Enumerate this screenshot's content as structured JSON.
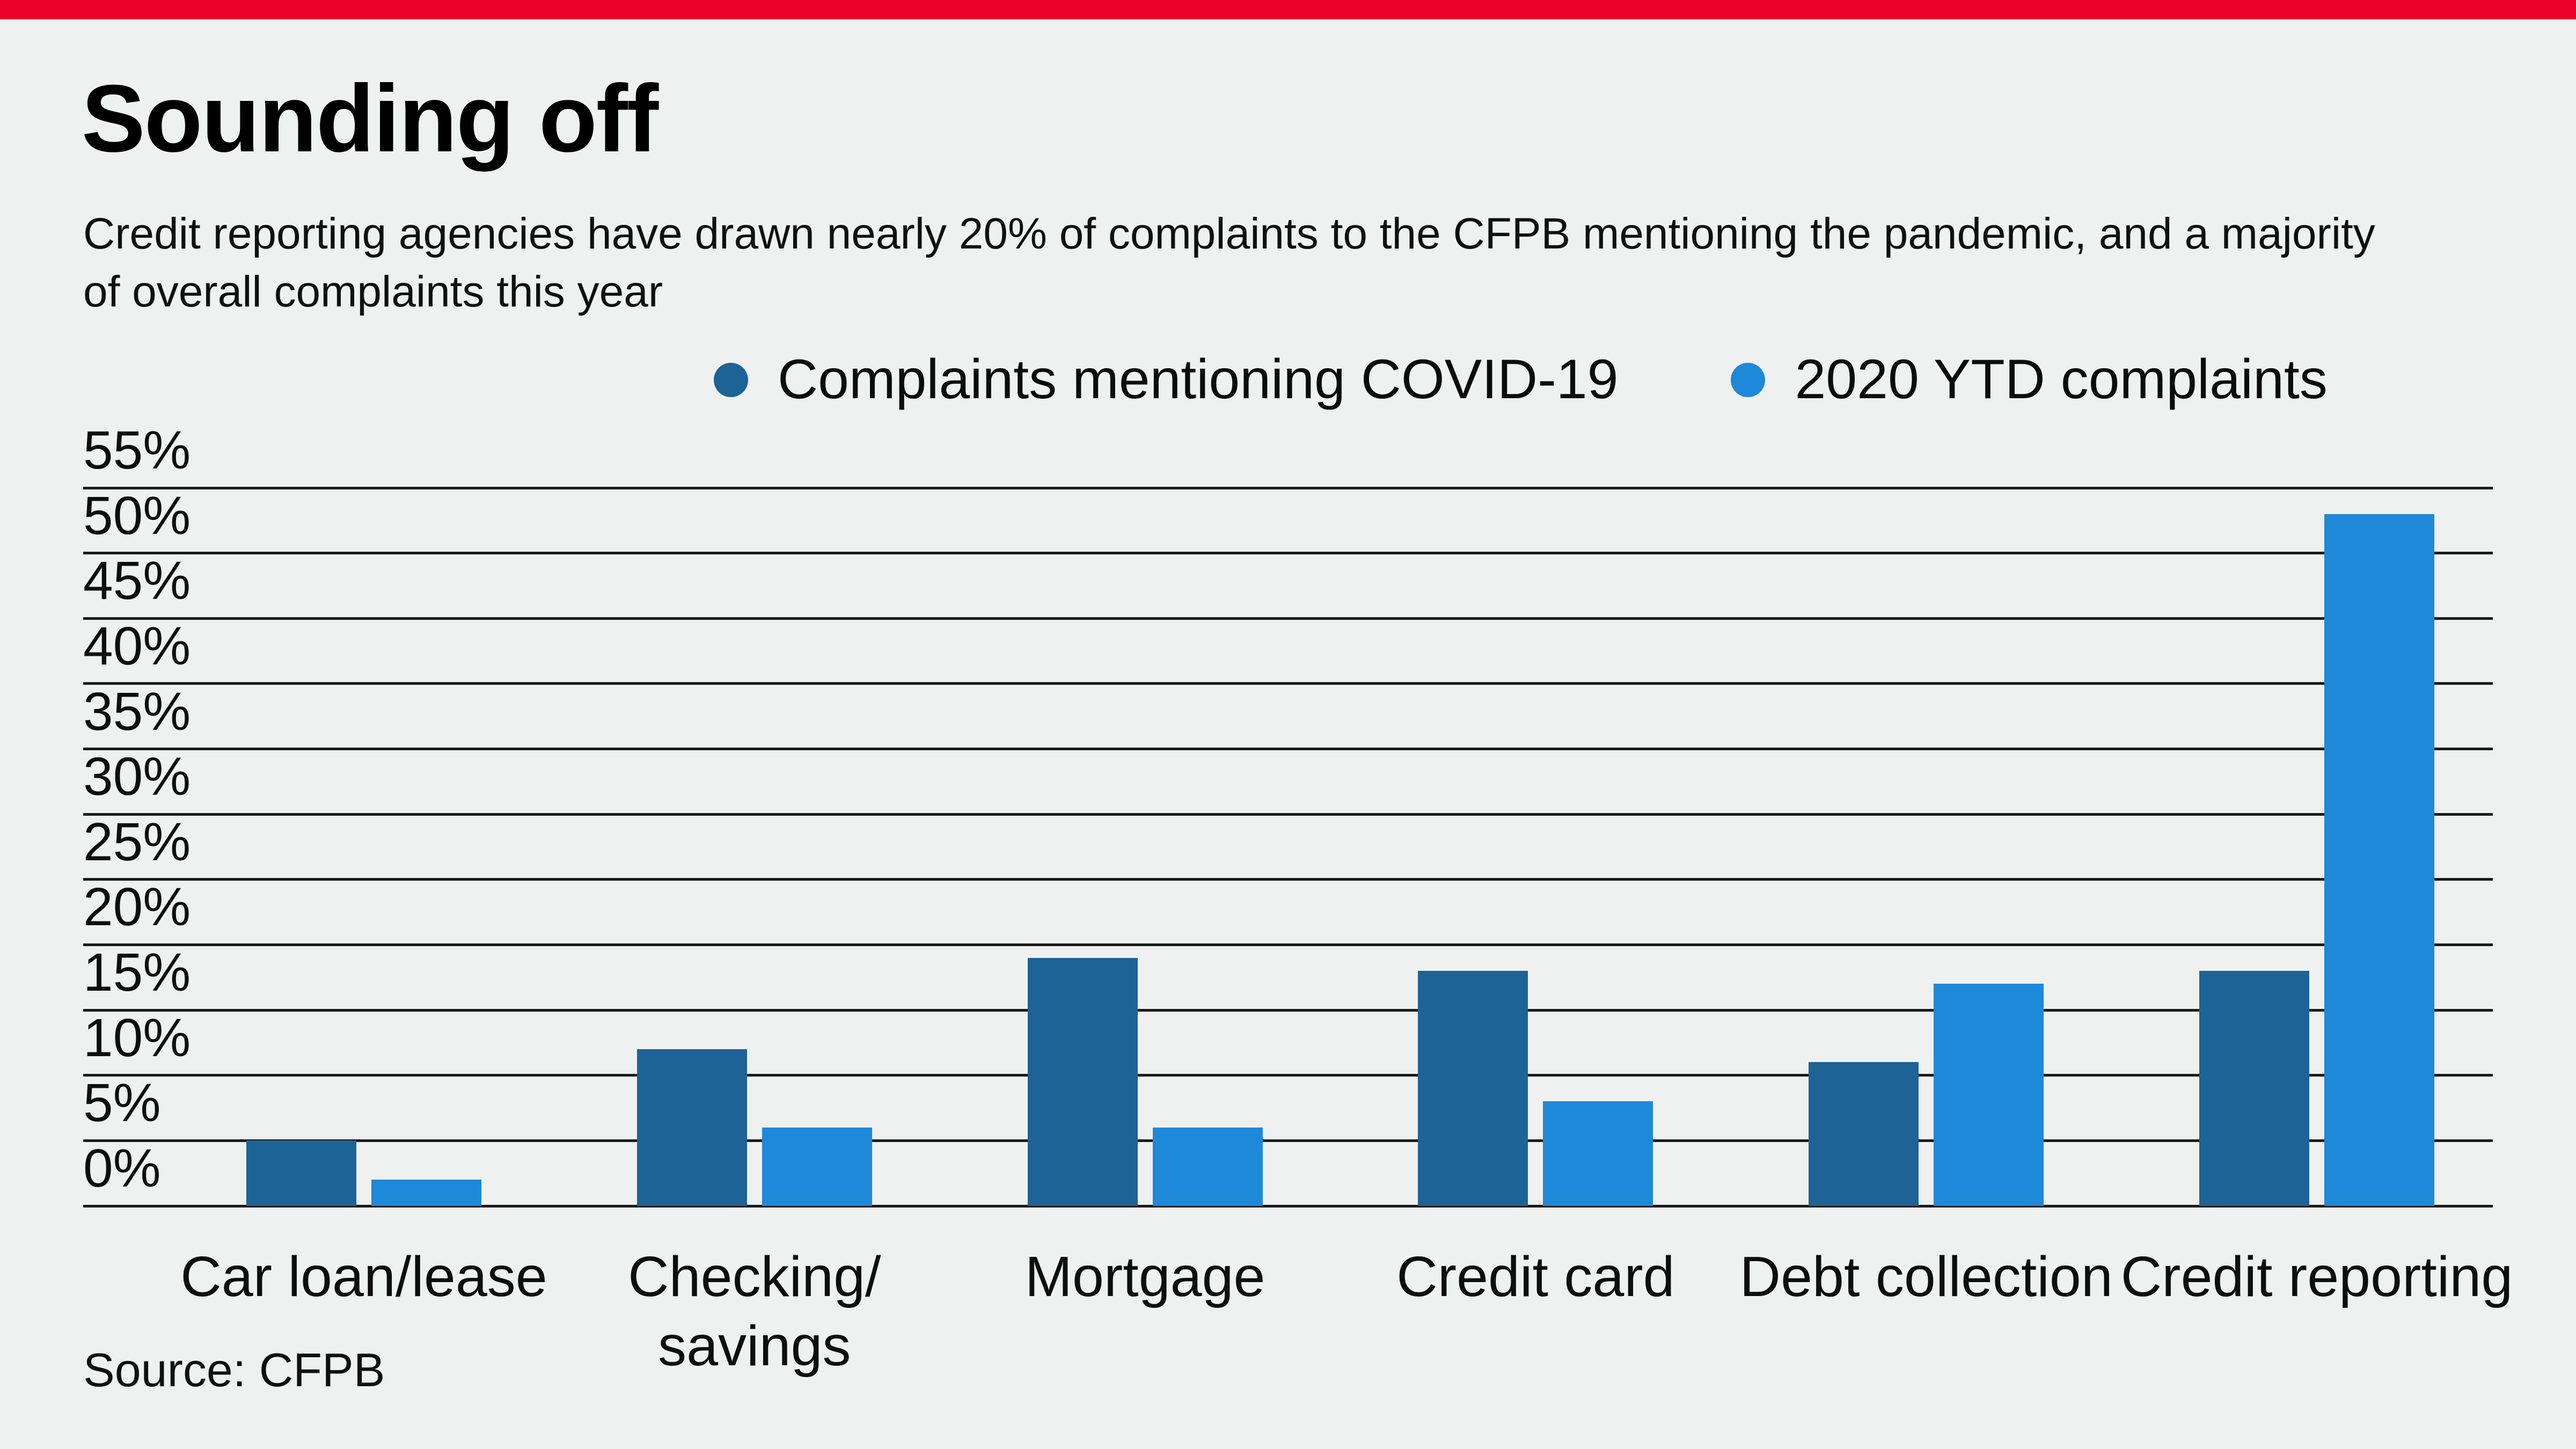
{
  "accent_bar_color": "#ea0029",
  "background_color": "#eff1f0",
  "grid_color": "#1b1b1b",
  "title": "Sounding off",
  "subtitle": "Credit reporting agencies have drawn nearly 20% of complaints to the CFPB mentioning the pandemic, and a majority of overall complaints this year",
  "source": "Source: CFPB",
  "chart_data": {
    "type": "bar",
    "title": "Sounding off",
    "categories": [
      "Car loan/lease",
      "Checking/\nsavings",
      "Mortgage",
      "Credit card",
      "Debt collection",
      "Credit reporting"
    ],
    "series": [
      {
        "name": "Complaints mentioning COVID-19",
        "color": "#1d6396",
        "values": [
          5,
          12,
          19,
          18,
          11,
          18
        ]
      },
      {
        "name": "2020 YTD complaints",
        "color": "#1e88d9",
        "values": [
          2,
          6,
          6,
          8,
          17,
          53
        ]
      }
    ],
    "ylim": [
      0,
      55
    ],
    "ytick_step": 5,
    "ytick_suffix": "%",
    "grid": true,
    "legend_position": "top",
    "xlabel": "",
    "ylabel": ""
  }
}
